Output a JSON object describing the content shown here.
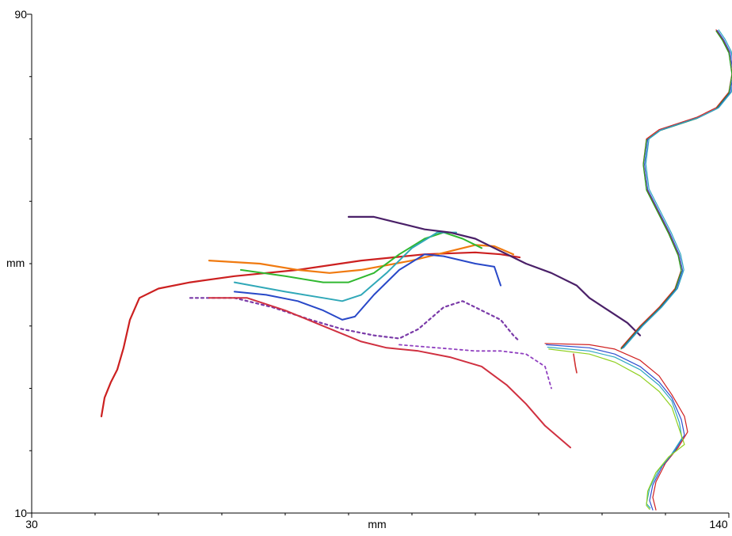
{
  "chart_data": {
    "type": "line",
    "xlabel": "mm",
    "ylabel": "mm",
    "xlim": [
      30,
      140
    ],
    "ylim": [
      10,
      90
    ],
    "x_tick_labels": [
      "30",
      "140"
    ],
    "y_tick_labels": [
      "10",
      "90"
    ],
    "grid": false,
    "legend": "none",
    "series": [
      {
        "color": "#cc2020",
        "style": "solid",
        "width": 2.2,
        "points": [
          [
            41,
            25.5
          ],
          [
            41.5,
            28.5
          ],
          [
            42.5,
            31
          ],
          [
            43.5,
            33
          ],
          [
            44.5,
            36.5
          ],
          [
            45.5,
            41
          ],
          [
            47,
            44.5
          ],
          [
            50,
            46
          ],
          [
            55,
            47
          ],
          [
            62,
            48
          ],
          [
            72,
            49
          ],
          [
            82,
            50.5
          ],
          [
            92,
            51.5
          ],
          [
            100,
            51.8
          ],
          [
            104,
            51.5
          ],
          [
            107,
            51
          ]
        ]
      },
      {
        "color": "#f07a10",
        "style": "solid",
        "width": 2.2,
        "points": [
          [
            58,
            50.5
          ],
          [
            66,
            50
          ],
          [
            72,
            49
          ],
          [
            77,
            48.5
          ],
          [
            82,
            49
          ],
          [
            90,
            50.5
          ],
          [
            96,
            52
          ],
          [
            100,
            53
          ],
          [
            103,
            52.8
          ],
          [
            106,
            51.5
          ]
        ]
      },
      {
        "color": "#30b830",
        "style": "solid",
        "width": 2,
        "points": [
          [
            63,
            49
          ],
          [
            70,
            48
          ],
          [
            76,
            47
          ],
          [
            80,
            47
          ],
          [
            84,
            48.5
          ],
          [
            88,
            51.5
          ],
          [
            92,
            54
          ],
          [
            95,
            55
          ],
          [
            98,
            54
          ],
          [
            101,
            52.5
          ]
        ]
      },
      {
        "color": "#30a8b8",
        "style": "solid",
        "width": 2,
        "points": [
          [
            62,
            47
          ],
          [
            70,
            45.5
          ],
          [
            76,
            44.5
          ],
          [
            79,
            44
          ],
          [
            82,
            45
          ],
          [
            86,
            48.5
          ],
          [
            90,
            52.5
          ],
          [
            94,
            55
          ],
          [
            97,
            55
          ]
        ]
      },
      {
        "color": "#2848c8",
        "style": "solid",
        "width": 2,
        "points": [
          [
            62,
            45.5
          ],
          [
            67,
            45
          ],
          [
            72,
            44
          ],
          [
            76,
            42.5
          ],
          [
            79,
            41
          ],
          [
            81,
            41.5
          ],
          [
            84,
            45
          ],
          [
            88,
            49
          ],
          [
            92,
            51.5
          ],
          [
            95,
            51.2
          ],
          [
            100,
            50
          ],
          [
            103,
            49.5
          ],
          [
            104,
            46.5
          ]
        ]
      },
      {
        "color": "#7a3aa8",
        "style": "dashed",
        "width": 2.2,
        "points": [
          [
            55,
            44.5
          ],
          [
            62,
            44.5
          ],
          [
            68,
            43
          ],
          [
            74,
            41
          ],
          [
            79,
            39.5
          ],
          [
            84,
            38.5
          ],
          [
            88,
            38
          ],
          [
            91,
            39.5
          ],
          [
            95,
            43
          ],
          [
            98,
            44
          ],
          [
            101,
            42.5
          ],
          [
            104,
            41
          ],
          [
            106,
            38.5
          ],
          [
            107,
            37.5
          ]
        ]
      },
      {
        "color": "#d03040",
        "style": "solid",
        "width": 2,
        "points": [
          [
            58,
            44.5
          ],
          [
            64,
            44.5
          ],
          [
            70,
            42.5
          ],
          [
            76,
            40
          ],
          [
            82,
            37.5
          ],
          [
            86,
            36.5
          ],
          [
            91,
            36
          ],
          [
            96,
            35
          ],
          [
            101,
            33.5
          ],
          [
            105,
            30.5
          ],
          [
            108,
            27.5
          ],
          [
            111,
            24
          ],
          [
            115,
            20.5
          ]
        ]
      },
      {
        "color": "#9040c0",
        "style": "dashed",
        "width": 1.8,
        "points": [
          [
            88,
            37
          ],
          [
            94,
            36.5
          ],
          [
            100,
            36
          ],
          [
            104,
            36
          ],
          [
            108,
            35.5
          ],
          [
            111,
            33.5
          ],
          [
            112,
            30
          ]
        ]
      },
      {
        "color": "#4a2068",
        "style": "solid",
        "width": 2.2,
        "points": [
          [
            80,
            57.5
          ],
          [
            84,
            57.5
          ],
          [
            88,
            56.5
          ],
          [
            92,
            55.5
          ],
          [
            96,
            55
          ],
          [
            100,
            54
          ],
          [
            104,
            52
          ],
          [
            108,
            50
          ],
          [
            112,
            48.5
          ],
          [
            116,
            46.5
          ],
          [
            118,
            44.5
          ],
          [
            121,
            42.5
          ],
          [
            124,
            40.5
          ],
          [
            126,
            38.5
          ]
        ]
      },
      {
        "color": "#d03030",
        "style": "solid",
        "width": 1.6,
        "points": [
          [
            115.5,
            35.5
          ],
          [
            115.8,
            33.5
          ],
          [
            116,
            32.5
          ]
        ]
      },
      {
        "color": "#d02020",
        "style": "solid",
        "width": 1.2,
        "points": [
          [
            138,
            87.5
          ],
          [
            139,
            86
          ],
          [
            140,
            84
          ],
          [
            140.5,
            80.5
          ],
          [
            140,
            77.5
          ],
          [
            138,
            75
          ],
          [
            135,
            73.5
          ],
          [
            132,
            72.5
          ],
          [
            129,
            71.5
          ],
          [
            127,
            70
          ],
          [
            126.5,
            66
          ],
          [
            127,
            62
          ],
          [
            129,
            58
          ],
          [
            130.5,
            55
          ],
          [
            132,
            51.5
          ],
          [
            132.5,
            49
          ],
          [
            131.5,
            46
          ],
          [
            129,
            43
          ],
          [
            126,
            40
          ],
          [
            123,
            36.5
          ]
        ]
      },
      {
        "color": "#20a020",
        "style": "solid",
        "width": 1.2,
        "points": [
          [
            138,
            87.3
          ],
          [
            139,
            85.8
          ],
          [
            140,
            83.8
          ],
          [
            140.5,
            80.3
          ],
          [
            140,
            77.3
          ],
          [
            138,
            74.8
          ],
          [
            135,
            73.3
          ],
          [
            132,
            72.3
          ],
          [
            129,
            71.3
          ],
          [
            127,
            69.8
          ],
          [
            126.5,
            65.8
          ],
          [
            127,
            61.8
          ],
          [
            129,
            57.8
          ],
          [
            130.5,
            54.8
          ],
          [
            132,
            51.3
          ],
          [
            132.5,
            48.8
          ],
          [
            131.5,
            45.8
          ],
          [
            129,
            42.8
          ],
          [
            126,
            39.8
          ],
          [
            123,
            36.3
          ]
        ]
      },
      {
        "color": "#3050d0",
        "style": "solid",
        "width": 1.2,
        "points": [
          [
            138.2,
            87.4
          ],
          [
            139.2,
            85.9
          ],
          [
            140.2,
            83.9
          ],
          [
            140.7,
            80.4
          ],
          [
            140.2,
            77.4
          ],
          [
            138.2,
            74.9
          ],
          [
            135.2,
            73.4
          ],
          [
            132.2,
            72.4
          ],
          [
            129.2,
            71.4
          ],
          [
            127.2,
            69.9
          ],
          [
            126.7,
            65.9
          ],
          [
            127.2,
            61.9
          ],
          [
            129.2,
            57.9
          ],
          [
            130.7,
            54.9
          ],
          [
            132.2,
            51.4
          ],
          [
            132.7,
            48.9
          ],
          [
            131.7,
            45.9
          ],
          [
            129.2,
            42.9
          ],
          [
            126.2,
            39.9
          ],
          [
            123.2,
            36.4
          ]
        ]
      },
      {
        "color": "#30a8c0",
        "style": "solid",
        "width": 1.2,
        "points": [
          [
            138.4,
            87.5
          ],
          [
            139.4,
            86
          ],
          [
            140.4,
            84
          ],
          [
            140.9,
            80.5
          ],
          [
            140.4,
            77.5
          ],
          [
            138.4,
            75
          ],
          [
            135.4,
            73.5
          ],
          [
            132.4,
            72.5
          ],
          [
            129.4,
            71.5
          ],
          [
            127.4,
            70
          ],
          [
            126.9,
            66
          ],
          [
            127.4,
            62
          ],
          [
            129.4,
            58
          ],
          [
            130.9,
            55
          ],
          [
            132.4,
            51.5
          ],
          [
            132.9,
            49
          ],
          [
            131.9,
            46
          ],
          [
            129.4,
            43
          ],
          [
            126.4,
            40
          ],
          [
            123.4,
            36.5
          ]
        ]
      },
      {
        "color": "#d02020",
        "style": "solid",
        "width": 1.2,
        "points": [
          [
            111,
            37.2
          ],
          [
            118,
            37
          ],
          [
            122,
            36.3
          ],
          [
            126,
            34.5
          ],
          [
            129,
            32
          ],
          [
            131,
            29
          ],
          [
            133,
            25.5
          ],
          [
            133.5,
            23
          ],
          [
            132,
            20.5
          ],
          [
            130,
            18
          ],
          [
            128.5,
            15
          ],
          [
            128,
            12.5
          ],
          [
            128.5,
            10.5
          ]
        ]
      },
      {
        "color": "#3050d0",
        "style": "solid",
        "width": 1.2,
        "points": [
          [
            111.2,
            37
          ],
          [
            118,
            36.5
          ],
          [
            122,
            35.5
          ],
          [
            126,
            33.5
          ],
          [
            129,
            31
          ],
          [
            131,
            28.5
          ],
          [
            132.5,
            25
          ],
          [
            133,
            22.5
          ],
          [
            131.5,
            20
          ],
          [
            129.5,
            17.5
          ],
          [
            128,
            14.5
          ],
          [
            127.5,
            12
          ],
          [
            128,
            10.5
          ]
        ]
      },
      {
        "color": "#30a8c0",
        "style": "solid",
        "width": 1.2,
        "points": [
          [
            111.4,
            36.6
          ],
          [
            118,
            36
          ],
          [
            122,
            35
          ],
          [
            126,
            33
          ],
          [
            129,
            30.5
          ],
          [
            131,
            28
          ],
          [
            132.2,
            24.5
          ],
          [
            132.6,
            22
          ],
          [
            131,
            19.5
          ],
          [
            129,
            17
          ],
          [
            127.5,
            14
          ],
          [
            127,
            11.5
          ],
          [
            127.6,
            10.8
          ]
        ]
      },
      {
        "color": "#90d020",
        "style": "solid",
        "width": 1.2,
        "points": [
          [
            111.6,
            36.3
          ],
          [
            118,
            35.5
          ],
          [
            122,
            34.2
          ],
          [
            126,
            32
          ],
          [
            129,
            29.5
          ],
          [
            131,
            27
          ],
          [
            132,
            24
          ],
          [
            133,
            21
          ],
          [
            130.5,
            19
          ],
          [
            128.5,
            16.5
          ],
          [
            127.2,
            13.5
          ],
          [
            127,
            11.2
          ],
          [
            127.5,
            10.6
          ]
        ]
      }
    ]
  }
}
